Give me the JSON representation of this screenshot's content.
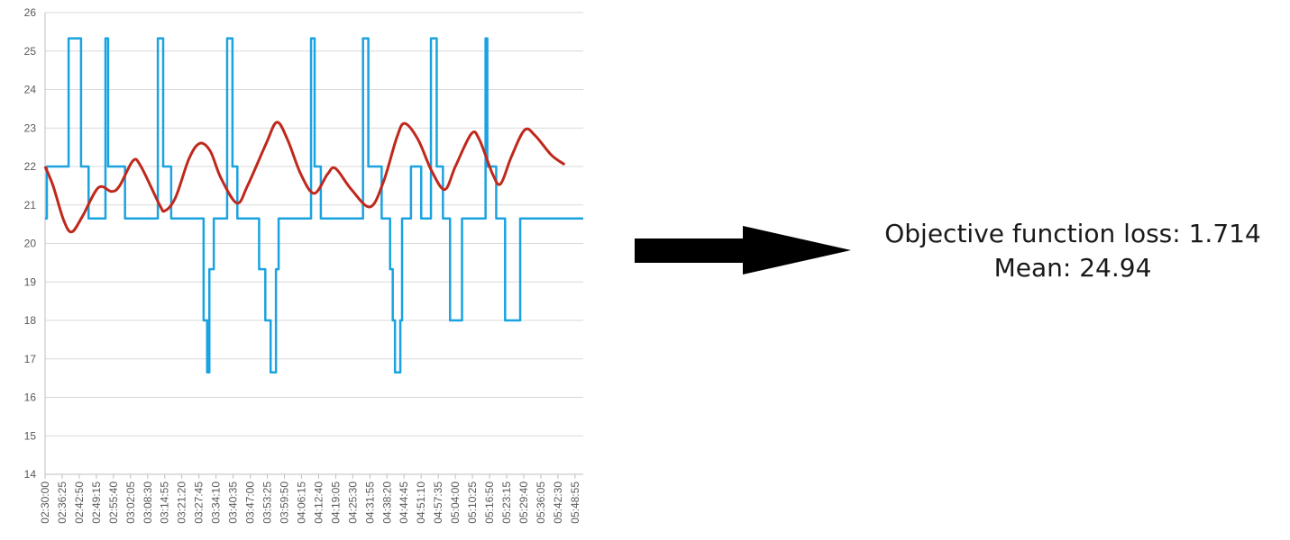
{
  "chart_data": {
    "type": "line",
    "ylim": [
      14,
      26
    ],
    "yticks": [
      14,
      15,
      16,
      17,
      18,
      19,
      20,
      21,
      22,
      23,
      24,
      25,
      26
    ],
    "x_start": "02:30:00",
    "x_end": "05:52:00",
    "xtick_labels": [
      "02:30:00",
      "02:36:25",
      "02:42:50",
      "02:49:15",
      "02:55:40",
      "03:02:05",
      "03:08:30",
      "03:14:55",
      "03:21:20",
      "03:27:45",
      "03:34:10",
      "03:40:35",
      "03:47:00",
      "03:53:25",
      "03:59:50",
      "04:06:15",
      "04:12:40",
      "04:19:05",
      "04:25:30",
      "04:31:55",
      "04:38:20",
      "04:44:45",
      "04:51:10",
      "04:57:35",
      "05:04:00",
      "05:10:25",
      "05:16:50",
      "05:23:15",
      "05:29:40",
      "05:36:05",
      "05:42:30",
      "05:48:55"
    ],
    "grid": true,
    "series": [
      {
        "color": "#1aa3e0",
        "style": "step",
        "points": [
          [
            "02:30:00",
            20.65
          ],
          [
            "02:30:40",
            20.65
          ],
          [
            "02:30:40",
            22.0
          ],
          [
            "02:38:50",
            22.0
          ],
          [
            "02:38:50",
            25.33
          ],
          [
            "02:43:30",
            25.33
          ],
          [
            "02:43:30",
            22.0
          ],
          [
            "02:46:20",
            22.0
          ],
          [
            "02:46:20",
            20.65
          ],
          [
            "02:52:40",
            20.65
          ],
          [
            "02:52:40",
            25.33
          ],
          [
            "02:53:40",
            25.33
          ],
          [
            "02:53:40",
            22.0
          ],
          [
            "03:00:00",
            22.0
          ],
          [
            "03:00:00",
            20.65
          ],
          [
            "03:12:20",
            20.65
          ],
          [
            "03:12:20",
            25.33
          ],
          [
            "03:14:20",
            25.33
          ],
          [
            "03:14:20",
            22.0
          ],
          [
            "03:17:20",
            22.0
          ],
          [
            "03:17:20",
            20.65
          ],
          [
            "03:29:30",
            20.65
          ],
          [
            "03:29:30",
            18.0
          ],
          [
            "03:31:00",
            18.0
          ],
          [
            "03:31:00",
            16.65
          ],
          [
            "03:31:40",
            16.65
          ],
          [
            "03:31:40",
            18.0
          ],
          [
            "03:30:50",
            18.0
          ],
          [
            "03:30:50",
            16.65
          ],
          [
            "03:31:40",
            16.65
          ],
          [
            "03:31:40",
            19.33
          ],
          [
            "03:33:20",
            19.33
          ],
          [
            "03:33:20",
            20.65
          ],
          [
            "03:38:20",
            20.65
          ],
          [
            "03:38:20",
            25.33
          ],
          [
            "03:40:20",
            25.33
          ],
          [
            "03:40:20",
            22.0
          ],
          [
            "03:42:10",
            22.0
          ],
          [
            "03:42:10",
            20.65
          ],
          [
            "03:50:20",
            20.65
          ],
          [
            "03:50:20",
            19.33
          ],
          [
            "03:52:40",
            19.33
          ],
          [
            "03:52:40",
            18.0
          ],
          [
            "03:54:40",
            18.0
          ],
          [
            "03:54:40",
            16.65
          ],
          [
            "03:56:40",
            16.65
          ],
          [
            "03:56:40",
            19.33
          ],
          [
            "03:57:40",
            19.33
          ],
          [
            "03:57:40",
            20.65
          ],
          [
            "04:09:50",
            20.65
          ],
          [
            "04:09:50",
            25.33
          ],
          [
            "04:11:10",
            25.33
          ],
          [
            "04:11:10",
            22.0
          ],
          [
            "04:13:30",
            22.0
          ],
          [
            "04:13:30",
            20.65
          ],
          [
            "04:29:20",
            20.65
          ],
          [
            "04:29:20",
            25.33
          ],
          [
            "04:31:20",
            25.33
          ],
          [
            "04:31:20",
            22.0
          ],
          [
            "04:36:20",
            22.0
          ],
          [
            "04:36:20",
            20.65
          ],
          [
            "04:39:30",
            20.65
          ],
          [
            "04:39:30",
            19.33
          ],
          [
            "04:40:30",
            19.33
          ],
          [
            "04:40:30",
            18.0
          ],
          [
            "04:41:20",
            18.0
          ],
          [
            "04:41:20",
            16.65
          ],
          [
            "04:43:20",
            16.65
          ],
          [
            "04:43:20",
            18.0
          ],
          [
            "04:44:00",
            18.0
          ],
          [
            "04:44:00",
            20.65
          ],
          [
            "04:47:20",
            20.65
          ],
          [
            "04:47:20",
            22.0
          ],
          [
            "04:51:10",
            22.0
          ],
          [
            "04:51:10",
            20.65
          ],
          [
            "04:54:50",
            20.65
          ],
          [
            "04:54:50",
            25.33
          ],
          [
            "04:57:00",
            25.33
          ],
          [
            "04:57:00",
            22.0
          ],
          [
            "04:59:20",
            22.0
          ],
          [
            "04:59:20",
            20.65
          ],
          [
            "05:02:00",
            20.65
          ],
          [
            "05:02:00",
            18.0
          ],
          [
            "05:06:30",
            18.0
          ],
          [
            "05:06:30",
            20.65
          ],
          [
            "05:15:20",
            20.65
          ],
          [
            "05:15:20",
            25.33
          ],
          [
            "05:16:00",
            25.33
          ],
          [
            "05:16:00",
            22.0
          ],
          [
            "05:19:20",
            22.0
          ],
          [
            "05:19:20",
            20.65
          ],
          [
            "05:22:40",
            20.65
          ],
          [
            "05:22:40",
            18.0
          ],
          [
            "05:28:20",
            18.0
          ],
          [
            "05:28:20",
            20.65
          ],
          [
            "05:52:00",
            20.65
          ]
        ]
      },
      {
        "color": "#c0281c",
        "style": "smooth",
        "points": [
          [
            "02:30:00",
            22.0
          ],
          [
            "02:33:00",
            21.5
          ],
          [
            "02:37:00",
            20.6
          ],
          [
            "02:40:00",
            20.3
          ],
          [
            "02:44:00",
            20.7
          ],
          [
            "02:50:00",
            21.45
          ],
          [
            "02:55:00",
            21.35
          ],
          [
            "02:58:00",
            21.5
          ],
          [
            "03:03:00",
            22.15
          ],
          [
            "03:06:00",
            22.0
          ],
          [
            "03:13:00",
            21.0
          ],
          [
            "03:15:00",
            20.85
          ],
          [
            "03:19:00",
            21.2
          ],
          [
            "03:24:00",
            22.2
          ],
          [
            "03:28:00",
            22.6
          ],
          [
            "03:32:00",
            22.4
          ],
          [
            "03:36:00",
            21.7
          ],
          [
            "03:42:00",
            21.05
          ],
          [
            "03:46:00",
            21.5
          ],
          [
            "03:53:00",
            22.6
          ],
          [
            "03:57:00",
            23.15
          ],
          [
            "04:01:00",
            22.7
          ],
          [
            "04:06:00",
            21.8
          ],
          [
            "04:11:00",
            21.3
          ],
          [
            "04:16:00",
            21.8
          ],
          [
            "04:19:00",
            21.95
          ],
          [
            "04:25:00",
            21.4
          ],
          [
            "04:32:00",
            20.95
          ],
          [
            "04:37:00",
            21.6
          ],
          [
            "04:42:00",
            22.75
          ],
          [
            "04:45:00",
            23.12
          ],
          [
            "04:50:00",
            22.7
          ],
          [
            "04:55:00",
            21.9
          ],
          [
            "05:00:00",
            21.4
          ],
          [
            "05:04:00",
            22.0
          ],
          [
            "05:10:00",
            22.85
          ],
          [
            "05:13:00",
            22.7
          ],
          [
            "05:18:00",
            21.8
          ],
          [
            "05:21:00",
            21.55
          ],
          [
            "05:25:00",
            22.25
          ],
          [
            "05:30:00",
            22.95
          ],
          [
            "05:34:00",
            22.8
          ],
          [
            "05:40:00",
            22.3
          ],
          [
            "05:45:00",
            22.05
          ]
        ]
      }
    ]
  },
  "metrics": {
    "loss_line": "Objective function loss: 1.714",
    "mean_line": "Mean: 24.94"
  },
  "arrow": {
    "icon": "right-arrow-icon",
    "color": "#000000"
  }
}
